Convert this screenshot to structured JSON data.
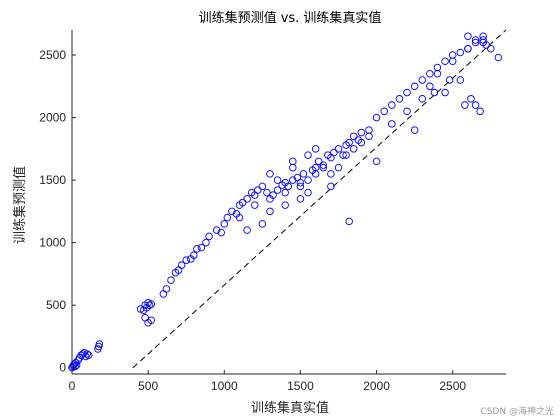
{
  "watermark": "CSDN @海神之光",
  "colors": {
    "marker": "#0000ff",
    "axis": "#262626",
    "reference_line": "#000000"
  },
  "chart_data": {
    "type": "scatter",
    "title": "训练集预测值 vs. 训练集真实值",
    "xlabel": "训练集真实值",
    "ylabel": "训练集预测值",
    "xlim": [
      0,
      2850
    ],
    "ylim": [
      -50,
      2700
    ],
    "xticks": [
      0,
      500,
      1000,
      1500,
      2000,
      2500
    ],
    "yticks": [
      0,
      500,
      1000,
      1500,
      2000,
      2500
    ],
    "grid": false,
    "legend": "none",
    "reference_line": {
      "style": "dashed",
      "points": [
        [
          400,
          0
        ],
        [
          2850,
          2700
        ]
      ]
    },
    "series": [
      {
        "marker": "open-circle",
        "x": [
          0,
          5,
          10,
          15,
          20,
          25,
          30,
          40,
          50,
          60,
          70,
          80,
          90,
          100,
          110,
          170,
          175,
          180,
          450,
          470,
          480,
          490,
          500,
          510,
          520,
          480,
          500,
          520,
          600,
          620,
          650,
          680,
          700,
          720,
          750,
          780,
          800,
          820,
          850,
          880,
          900,
          950,
          980,
          1000,
          1020,
          1050,
          1080,
          1100,
          1120,
          1150,
          1180,
          1200,
          1220,
          1250,
          1280,
          1300,
          1320,
          1350,
          1380,
          1400,
          1420,
          1450,
          1480,
          1500,
          1520,
          1550,
          1580,
          1600,
          1620,
          1650,
          1680,
          1700,
          1720,
          1750,
          1780,
          1800,
          1820,
          1850,
          1880,
          1900,
          1950,
          2000,
          2050,
          2100,
          2150,
          2200,
          2250,
          2300,
          2350,
          2400,
          2450,
          2500,
          2550,
          2600,
          2650,
          2700,
          2750,
          2800,
          1100,
          1200,
          1300,
          1400,
          1500,
          1600,
          1700,
          1350,
          1450,
          1550,
          1650,
          1250,
          1150,
          1400,
          1500,
          1600,
          1300,
          1450,
          1550,
          1700,
          1800,
          1900,
          2000,
          2100,
          2200,
          2300,
          2400,
          2500,
          2600,
          2700,
          2450,
          2550,
          2650,
          2350,
          2250,
          1950,
          1850,
          1750,
          1820,
          2600,
          2650,
          2700,
          2720,
          2580,
          2620,
          2680,
          2480,
          2380
        ],
        "y": [
          0,
          10,
          20,
          30,
          10,
          40,
          20,
          60,
          80,
          100,
          110,
          120,
          90,
          110,
          100,
          150,
          170,
          190,
          470,
          460,
          500,
          480,
          520,
          500,
          510,
          400,
          360,
          380,
          590,
          630,
          700,
          760,
          780,
          820,
          860,
          870,
          900,
          950,
          960,
          1000,
          1050,
          1100,
          1080,
          1150,
          1200,
          1250,
          1230,
          1300,
          1320,
          1350,
          1400,
          1380,
          1420,
          1450,
          1400,
          1350,
          1380,
          1420,
          1460,
          1480,
          1450,
          1500,
          1520,
          1480,
          1550,
          1500,
          1580,
          1600,
          1650,
          1620,
          1700,
          1680,
          1720,
          1750,
          1700,
          1780,
          1800,
          1850,
          1820,
          1880,
          1900,
          2000,
          2050,
          2100,
          2150,
          2200,
          2250,
          2300,
          2350,
          2400,
          2450,
          2500,
          2520,
          2550,
          2600,
          2620,
          2550,
          2480,
          1200,
          1300,
          1250,
          1400,
          1350,
          1550,
          1450,
          1500,
          1600,
          1700,
          1600,
          1150,
          1100,
          1300,
          1450,
          1750,
          1550,
          1650,
          1400,
          1550,
          1700,
          1800,
          1650,
          1950,
          2050,
          2150,
          2350,
          2450,
          2550,
          2650,
          2200,
          2300,
          2100,
          2250,
          1900,
          1850,
          1750,
          1600,
          1170,
          2650,
          2620,
          2600,
          2580,
          2100,
          2150,
          2050,
          2300,
          2200
        ]
      }
    ]
  }
}
